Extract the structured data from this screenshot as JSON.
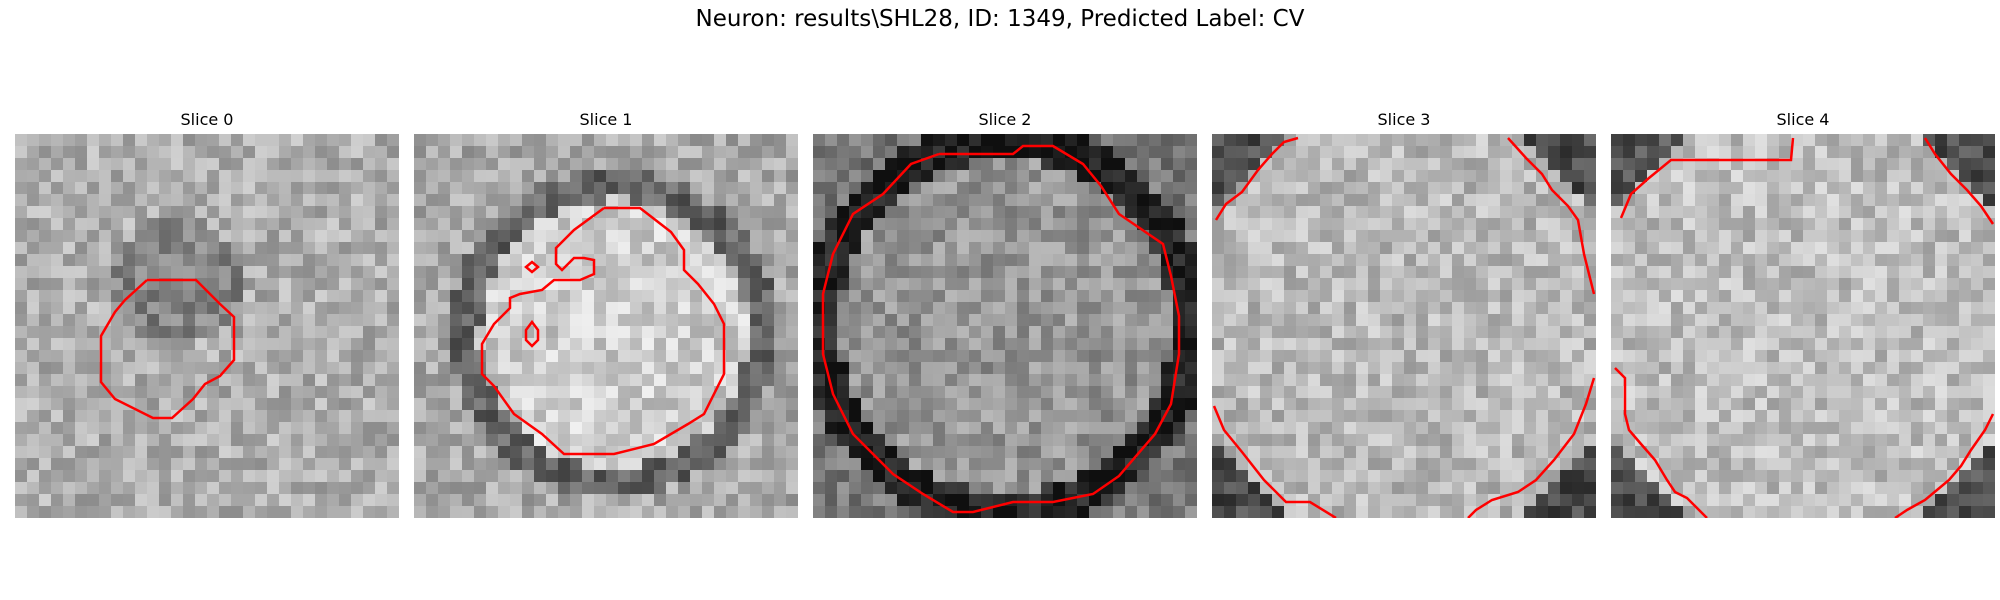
{
  "title": "Neuron: results\\SHL28, ID: 1349, Predicted Label: CV",
  "colors": {
    "contour": "#ff0000",
    "background": "#ffffff"
  },
  "panels": [
    {
      "label": "Slice 0"
    },
    {
      "label": "Slice 1"
    },
    {
      "label": "Slice 2"
    },
    {
      "label": "Slice 3"
    },
    {
      "label": "Slice 4"
    }
  ]
}
